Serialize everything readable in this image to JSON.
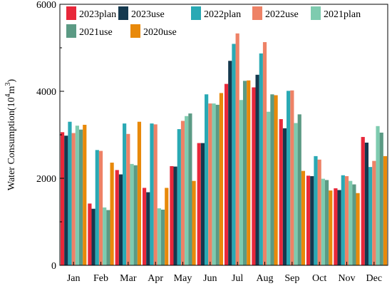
{
  "chart_data": {
    "type": "bar",
    "title": "",
    "xlabel": "",
    "ylabel": "Water Consumption(10",
    "ylabel_sup1": "4",
    "ylabel_mid": "m",
    "ylabel_sup2": "3",
    "ylabel_end": ")",
    "ylim": [
      0,
      6000
    ],
    "yticks": [
      0,
      2000,
      4000,
      6000
    ],
    "grid": false,
    "legend_position": "top",
    "categories": [
      "Jan",
      "Feb",
      "Mar",
      "Apr",
      "May",
      "Jun",
      "Jul",
      "Aug",
      "Sep",
      "Oct",
      "Nov",
      "Dec"
    ],
    "series": [
      {
        "name": "2023plan",
        "color": "#e8283a",
        "values": [
          3060,
          1420,
          2190,
          1780,
          2280,
          2810,
          4170,
          4090,
          3360,
          2060,
          1770,
          2950
        ]
      },
      {
        "name": "2023use",
        "color": "#14394f",
        "values": [
          2980,
          1300,
          2090,
          1680,
          2270,
          2810,
          4700,
          4380,
          3150,
          2050,
          1730,
          2820
        ]
      },
      {
        "name": "2022plan",
        "color": "#29a9b4",
        "values": [
          3300,
          2650,
          3260,
          3260,
          3130,
          3930,
          5090,
          4870,
          4010,
          2510,
          2070,
          2260
        ]
      },
      {
        "name": "2022use",
        "color": "#ee8266",
        "values": [
          3040,
          2630,
          3020,
          3240,
          3320,
          3720,
          5330,
          5130,
          4020,
          2430,
          2050,
          2400
        ]
      },
      {
        "name": "2021plan",
        "color": "#7ecbaf",
        "values": [
          3210,
          1330,
          2330,
          1310,
          3430,
          3720,
          3800,
          3530,
          3270,
          1990,
          1940,
          3200
        ]
      },
      {
        "name": "2021use",
        "color": "#5b9a84",
        "values": [
          3120,
          1270,
          2300,
          1280,
          3490,
          3690,
          4240,
          3930,
          3470,
          1960,
          1860,
          3050
        ]
      },
      {
        "name": "2020use",
        "color": "#e8890a",
        "values": [
          3230,
          2360,
          3300,
          1780,
          1940,
          3960,
          4250,
          3910,
          2170,
          1720,
          1660,
          2510
        ]
      }
    ]
  }
}
